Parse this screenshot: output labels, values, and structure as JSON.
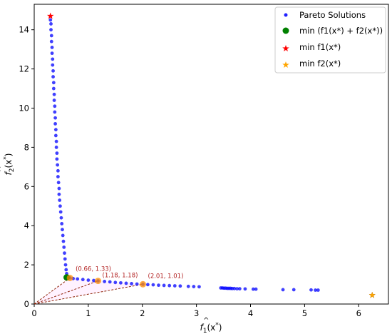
{
  "chart_data": {
    "type": "scatter",
    "title": "",
    "xlabel_parts": [
      "f",
      "1",
      "(x",
      "*",
      ")"
    ],
    "ylabel_parts": [
      "f",
      "2",
      "(x",
      "*",
      ")"
    ],
    "xlim": [
      0,
      6.55
    ],
    "ylim": [
      0,
      15.3
    ],
    "xticks": [
      "0",
      "1",
      "2",
      "3",
      "4",
      "5",
      "6"
    ],
    "yticks": [
      "0",
      "2",
      "4",
      "6",
      "8",
      "10",
      "12",
      "14"
    ],
    "grid": false,
    "legend_position": "top-right",
    "legend": [
      {
        "key": "pareto",
        "label": "Pareto Solutions",
        "marker": "dot",
        "color": "#0000ff"
      },
      {
        "key": "min_sum",
        "label": "min (f1(x*) + f2(x*))",
        "marker": "circle",
        "color": "#008000"
      },
      {
        "key": "min_f1",
        "label": "min f1(x*)",
        "marker": "star",
        "color": "#ff0000"
      },
      {
        "key": "min_f2",
        "label": "min f2(x*)",
        "marker": "star",
        "color": "#ffa500"
      }
    ],
    "series": [
      {
        "key": "pareto",
        "name": "Pareto Solutions",
        "color": "#0000ff",
        "points": [
          [
            0.3,
            14.5
          ],
          [
            0.31,
            14.3
          ],
          [
            0.31,
            14.0
          ],
          [
            0.32,
            13.7
          ],
          [
            0.32,
            13.4
          ],
          [
            0.33,
            13.1
          ],
          [
            0.33,
            12.8
          ],
          [
            0.34,
            12.5
          ],
          [
            0.34,
            12.2
          ],
          [
            0.35,
            11.9
          ],
          [
            0.35,
            11.6
          ],
          [
            0.36,
            11.3
          ],
          [
            0.36,
            11.0
          ],
          [
            0.37,
            10.7
          ],
          [
            0.37,
            10.4
          ],
          [
            0.38,
            10.1
          ],
          [
            0.38,
            9.8
          ],
          [
            0.39,
            9.5
          ],
          [
            0.39,
            9.2
          ],
          [
            0.4,
            8.9
          ],
          [
            0.4,
            8.6
          ],
          [
            0.41,
            8.3
          ],
          [
            0.41,
            8.0
          ],
          [
            0.42,
            7.7
          ],
          [
            0.42,
            7.4
          ],
          [
            0.43,
            7.1
          ],
          [
            0.44,
            6.8
          ],
          [
            0.44,
            6.5
          ],
          [
            0.45,
            6.2
          ],
          [
            0.46,
            5.9
          ],
          [
            0.46,
            5.6
          ],
          [
            0.47,
            5.3
          ],
          [
            0.48,
            5.0
          ],
          [
            0.49,
            4.7
          ],
          [
            0.5,
            4.4
          ],
          [
            0.51,
            4.1
          ],
          [
            0.52,
            3.8
          ],
          [
            0.53,
            3.5
          ],
          [
            0.54,
            3.2
          ],
          [
            0.55,
            2.9
          ],
          [
            0.56,
            2.6
          ],
          [
            0.57,
            2.3
          ],
          [
            0.58,
            2.0
          ],
          [
            0.59,
            1.75
          ],
          [
            0.6,
            1.55
          ],
          [
            0.62,
            1.42
          ],
          [
            0.66,
            1.33
          ],
          [
            0.72,
            1.3
          ],
          [
            0.8,
            1.28
          ],
          [
            0.9,
            1.25
          ],
          [
            1.0,
            1.22
          ],
          [
            1.1,
            1.2
          ],
          [
            1.18,
            1.18
          ],
          [
            1.3,
            1.15
          ],
          [
            1.4,
            1.13
          ],
          [
            1.5,
            1.1
          ],
          [
            1.6,
            1.08
          ],
          [
            1.7,
            1.06
          ],
          [
            1.8,
            1.04
          ],
          [
            1.9,
            1.02
          ],
          [
            2.01,
            1.01
          ],
          [
            2.1,
            0.99
          ],
          [
            2.2,
            0.98
          ],
          [
            2.3,
            0.96
          ],
          [
            2.4,
            0.95
          ],
          [
            2.5,
            0.94
          ],
          [
            2.6,
            0.93
          ],
          [
            2.7,
            0.92
          ],
          [
            2.85,
            0.9
          ],
          [
            2.95,
            0.89
          ],
          [
            3.05,
            0.88
          ],
          [
            3.45,
            0.82
          ],
          [
            3.48,
            0.82
          ],
          [
            3.51,
            0.81
          ],
          [
            3.54,
            0.81
          ],
          [
            3.57,
            0.8
          ],
          [
            3.6,
            0.8
          ],
          [
            3.63,
            0.8
          ],
          [
            3.66,
            0.79
          ],
          [
            3.7,
            0.79
          ],
          [
            3.75,
            0.78
          ],
          [
            3.8,
            0.78
          ],
          [
            3.9,
            0.77
          ],
          [
            4.05,
            0.76
          ],
          [
            4.1,
            0.76
          ],
          [
            4.6,
            0.73
          ],
          [
            4.8,
            0.73
          ],
          [
            5.12,
            0.72
          ],
          [
            5.2,
            0.71
          ],
          [
            5.25,
            0.71
          ]
        ]
      }
    ],
    "highlights": {
      "min_f1": {
        "x": 0.3,
        "y": 14.7,
        "color": "#ff0000"
      },
      "min_f2": {
        "x": 6.25,
        "y": 0.45,
        "color": "#ffa500"
      },
      "min_sum": {
        "x": 0.6,
        "y": 1.36,
        "color": "#008000"
      }
    },
    "annotations": [
      {
        "x": 0.66,
        "y": 1.33,
        "label": "(0.66, 1.33)",
        "color": "#ff8c00"
      },
      {
        "x": 1.18,
        "y": 1.18,
        "label": "(1.18, 1.18)",
        "color": "#ff8c00"
      },
      {
        "x": 2.01,
        "y": 1.01,
        "label": "(2.01, 1.01)",
        "color": "#ff8c00"
      }
    ],
    "annotation_text_color": "#b22222",
    "origin_line_color": "#8b2500"
  }
}
